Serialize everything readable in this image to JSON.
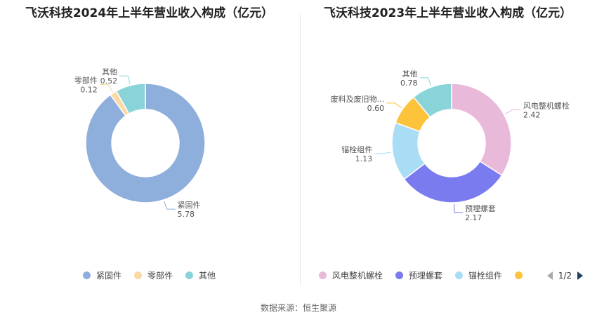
{
  "source": "数据来源：恒生聚源",
  "chart_data": [
    {
      "type": "pie",
      "title": "飞沃科技2024年上半年营业收入构成（亿元）",
      "categories": [
        "紧固件",
        "零部件",
        "其他"
      ],
      "values": [
        5.78,
        0.12,
        0.52
      ],
      "value_labels": [
        "5.78",
        "0.12",
        "0.52"
      ],
      "colors": [
        "#8eaedb",
        "#fbd9a4",
        "#89d4d9"
      ],
      "legend": [
        "紧固件",
        "零部件",
        "其他"
      ],
      "legend_position": "bottom"
    },
    {
      "type": "pie",
      "title": "飞沃科技2023年上半年营业收入构成（亿元）",
      "categories": [
        "风电整机螺栓",
        "预埋螺套",
        "锚栓组件",
        "废料及废旧物...",
        "其他"
      ],
      "values": [
        2.42,
        2.17,
        1.13,
        0.6,
        0.78
      ],
      "value_labels": [
        "2.42",
        "2.17",
        "1.13",
        "0.60",
        "0.78"
      ],
      "colors": [
        "#e9b9d9",
        "#7b7bf0",
        "#a9dcf5",
        "#fcc33b",
        "#89d4d9"
      ],
      "legend": [
        "风电整机螺栓",
        "预埋螺套",
        "锚栓组件",
        ""
      ],
      "legend_position": "bottom",
      "pager": "1/2"
    }
  ]
}
